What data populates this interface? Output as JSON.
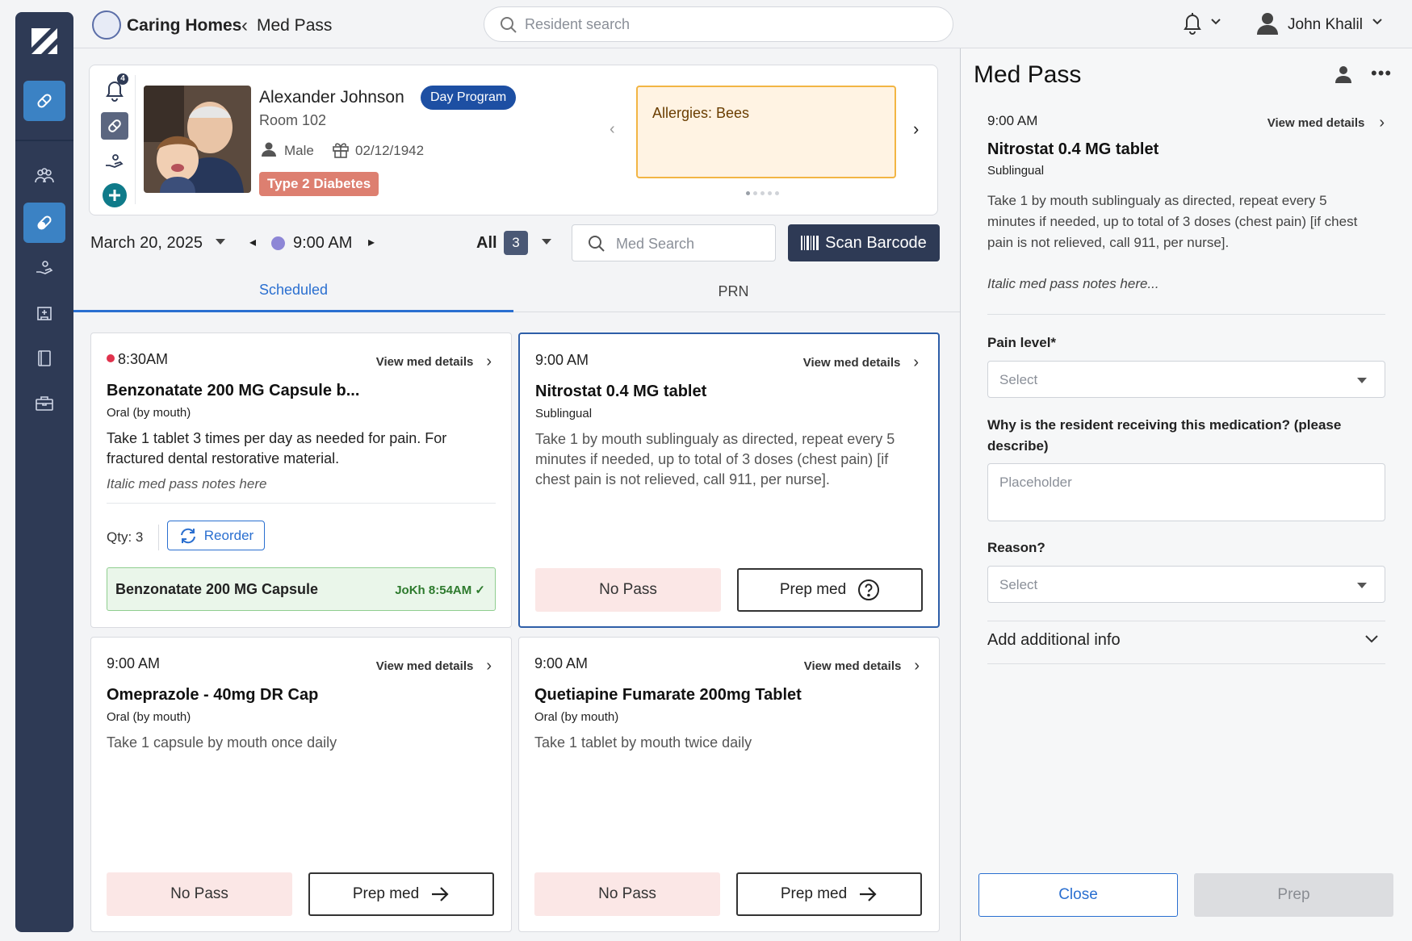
{
  "header": {
    "brand": "Caring Homes",
    "breadcrumb": "Med Pass",
    "search_placeholder": "Resident search",
    "user_name": "John Khalil"
  },
  "nav": {
    "items": [
      "logo-icon",
      "med-pass-icon",
      "residents-icon",
      "medication-icon",
      "care-icon",
      "facility-icon",
      "notes-icon",
      "kit-icon"
    ],
    "active_color": "#3b82c4",
    "rail_color": "#2e3a55"
  },
  "resident": {
    "name": "Alexander Johnson",
    "program": "Day Program",
    "room": "Room 102",
    "gender": "Male",
    "dob": "02/12/1942",
    "diagnosis": "Type 2 Diabetes",
    "alert_count": "4",
    "allergy": "Allergies: Bees"
  },
  "filters": {
    "date": "March 20, 2025",
    "time": "9:00 AM",
    "all_label": "All",
    "all_count": "3",
    "med_search_placeholder": "Med Search",
    "scan_label": "Scan Barcode"
  },
  "tabs": [
    {
      "label": "Scheduled",
      "active": true
    },
    {
      "label": "PRN",
      "active": false
    }
  ],
  "cards": [
    {
      "time": "8:30AM",
      "view": "View med details",
      "name": "Benzonatate 200 MG Capsule b...",
      "route": "Oral (by mouth)",
      "desc": "Take 1 tablet 3 times per day as needed for pain. For fractured dental restorative material.",
      "note": "Italic med pass notes here",
      "qty": "Qty: 3",
      "reorder": "Reorder",
      "passed_name": "Benzonatate 200 MG Capsule",
      "passed_by": "JoKh 8:54AM"
    },
    {
      "time": "9:00 AM",
      "view": "View med details",
      "name": "Nitrostat 0.4 MG tablet",
      "route": "Sublingual",
      "desc": "Take 1 by mouth sublingualy as directed, repeat every 5 minutes if needed, up to total of 3 doses (chest pain) [if chest pain is not relieved, call 911, per nurse].",
      "no_pass": "No Pass",
      "prep": "Prep med"
    },
    {
      "time": "9:00 AM",
      "view": "View med details",
      "name": "Omeprazole - 40mg DR Cap",
      "route": "Oral (by mouth)",
      "desc": "Take 1 capsule by mouth once daily",
      "no_pass": "No Pass",
      "prep": "Prep med"
    },
    {
      "time": "9:00 AM",
      "view": "View med details",
      "name": "Quetiapine Fumarate 200mg Tablet",
      "route": "Oral (by mouth)",
      "desc": "Take 1 tablet by mouth twice daily",
      "no_pass": "No Pass",
      "prep": "Prep med"
    }
  ],
  "panel": {
    "title": "Med Pass",
    "time": "9:00 AM",
    "view": "View med details",
    "name": "Nitrostat 0.4 MG tablet",
    "route": "Sublingual",
    "desc": "Take 1 by mouth sublingualy as directed, repeat every 5 minutes if needed, up to total of 3 doses (chest pain) [if chest pain is not relieved, call 911, per nurse].",
    "note": "Italic med pass notes here...",
    "pain_label": "Pain level*",
    "pain_placeholder": "Select",
    "why_label": "Why is the resident receiving this medication? (please describe)",
    "why_placeholder": "Placeholder",
    "reason_label": "Reason?",
    "reason_placeholder": "Select",
    "add_info": "Add additional info",
    "close": "Close",
    "prep": "Prep"
  }
}
